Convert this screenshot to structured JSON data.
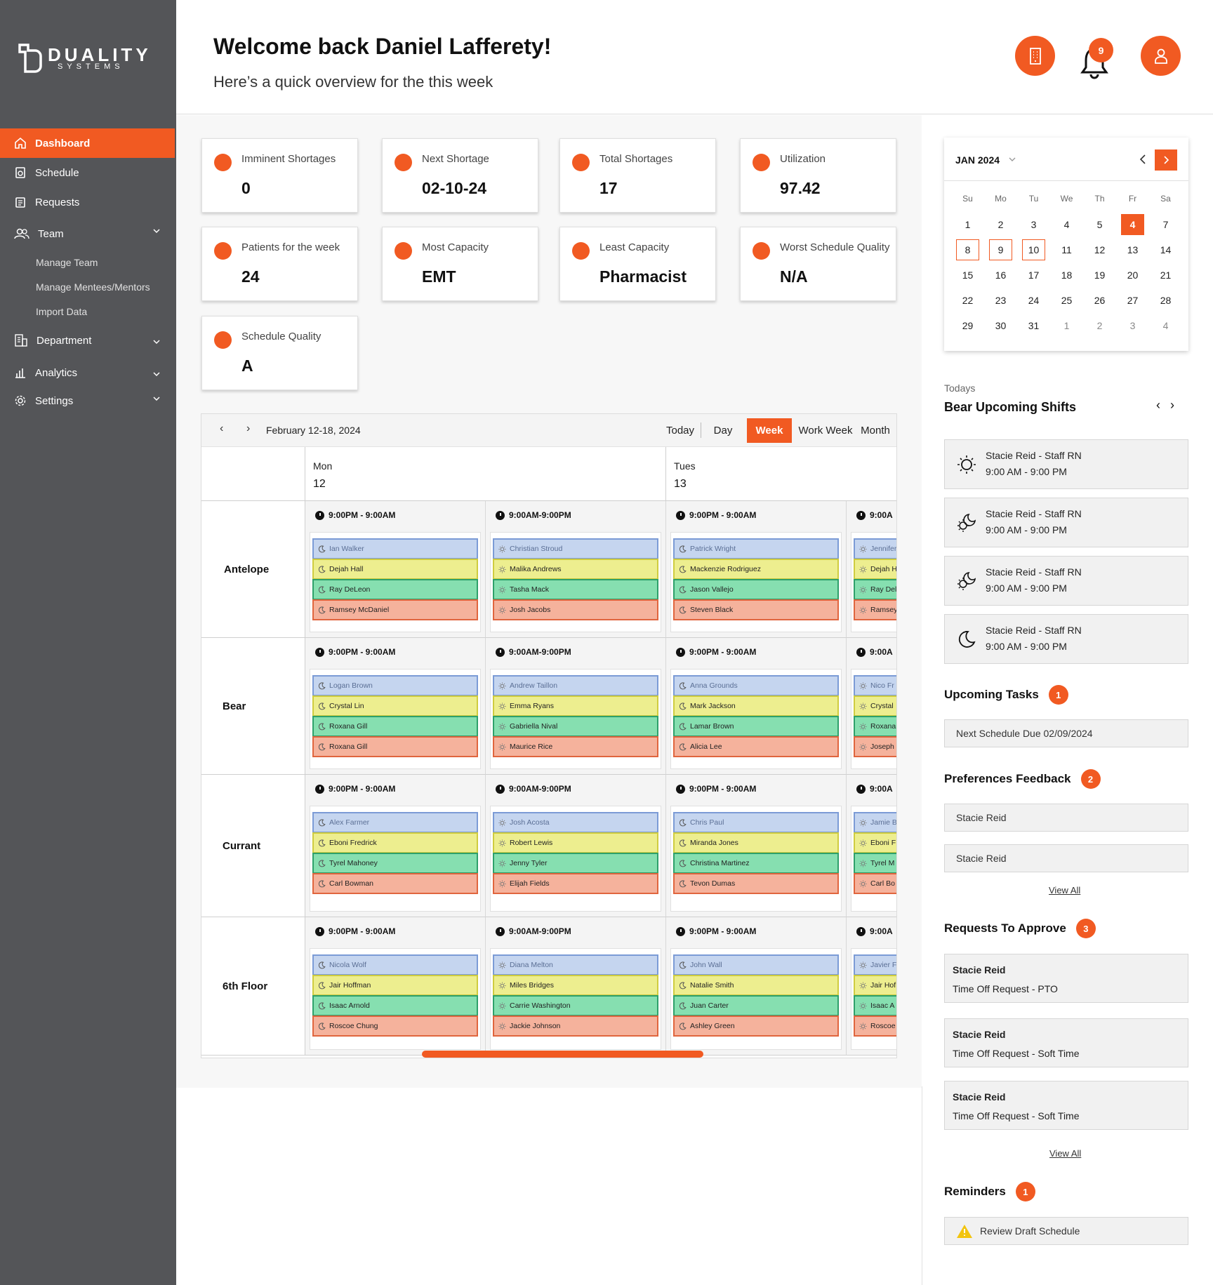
{
  "brand": {
    "name": "DUALITY",
    "sub": "SYSTEMS"
  },
  "sidebar": {
    "items": [
      {
        "label": "Dashboard"
      },
      {
        "label": "Schedule"
      },
      {
        "label": "Requests"
      },
      {
        "label": "Team"
      },
      {
        "label": "Department"
      },
      {
        "label": "Analytics"
      },
      {
        "label": "Settings"
      }
    ],
    "team_sub": [
      "Manage Team",
      "Manage Mentees/Mentors",
      "Import Data"
    ]
  },
  "header": {
    "welcome": "Welcome back Daniel Lafferety!",
    "subtitle": "Here’s a quick overview for the this week",
    "notification_count": "9"
  },
  "stats": [
    {
      "label": "Imminent Shortages",
      "value": "0"
    },
    {
      "label": "Next Shortage",
      "value": "02-10-24"
    },
    {
      "label": "Total Shortages",
      "value": "17"
    },
    {
      "label": "Utilization",
      "value": "97.42"
    },
    {
      "label": "Patients for the week",
      "value": "24"
    },
    {
      "label": "Most Capacity",
      "value": "EMT"
    },
    {
      "label": "Least Capacity",
      "value": "Pharmacist"
    },
    {
      "label": "Worst Schedule Quality",
      "value": "N/A"
    },
    {
      "label": "Schedule Quality",
      "value": "A"
    }
  ],
  "scheduler": {
    "range": "February 12-18, 2024",
    "views": [
      "Today",
      "Day",
      "Week",
      "Work Week",
      "Month"
    ],
    "active_view": "Week",
    "days": [
      {
        "name": "Mon",
        "date": "12"
      },
      {
        "name": "Tues",
        "date": "13"
      }
    ],
    "units": [
      {
        "name": "Antelope",
        "shifts": [
          "9:00PM - 9:00AM",
          "9:00AM-9:00PM",
          "9:00PM - 9:00AM",
          "9:00A"
        ],
        "staff": [
          [
            "Ian Walker",
            "Dejah Hall",
            "Ray DeLeon",
            "Ramsey McDaniel"
          ],
          [
            "Christian Stroud",
            "Malika Andrews",
            "Tasha Mack",
            "Josh Jacobs"
          ],
          [
            "Patrick Wright",
            "Mackenzie Rodriguez",
            "Jason Vallejo",
            "Steven Black"
          ],
          [
            "Jennifer",
            "Dejah H",
            "Ray Del",
            "Ramsey"
          ]
        ]
      },
      {
        "name": "Bear",
        "shifts": [
          "9:00PM - 9:00AM",
          "9:00AM-9:00PM",
          "9:00PM - 9:00AM",
          "9:00A"
        ],
        "staff": [
          [
            "Logan Brown",
            "Crystal Lin",
            "Roxana Gill",
            "Roxana Gill"
          ],
          [
            "Andrew Taillon",
            "Emma Ryans",
            "Gabriella Nival",
            "Maurice Rice"
          ],
          [
            "Anna Grounds",
            "Mark Jackson",
            "Lamar Brown",
            "Alicia Lee"
          ],
          [
            "Nico Fr",
            "Crystal",
            "Roxana",
            "Joseph"
          ]
        ]
      },
      {
        "name": "Currant",
        "shifts": [
          "9:00PM - 9:00AM",
          "9:00AM-9:00PM",
          "9:00PM - 9:00AM",
          "9:00A"
        ],
        "staff": [
          [
            "Alex Farmer",
            "Eboni Fredrick",
            "Tyrel Mahoney",
            "Carl Bowman"
          ],
          [
            "Josh Acosta",
            "Robert Lewis",
            "Jenny Tyler",
            "Elijah Fields"
          ],
          [
            "Chris Paul",
            "Miranda Jones",
            "Christina Martinez",
            "Tevon Dumas"
          ],
          [
            "Jamie B",
            "Eboni F",
            "Tyrel M",
            "Carl Bo"
          ]
        ]
      },
      {
        "name": "6th Floor",
        "shifts": [
          "9:00PM - 9:00AM",
          "9:00AM-9:00PM",
          "9:00PM - 9:00AM",
          "9:00A"
        ],
        "staff": [
          [
            "Nicola Wolf",
            "Jair Hoffman",
            "Isaac Arnold",
            "Roscoe Chung"
          ],
          [
            "Diana Melton",
            "Miles Bridges",
            "Carrie Washington",
            "Jackie Johnson"
          ],
          [
            "John Wall",
            "Natalie Smith",
            "Juan Carter",
            "Ashley Green"
          ],
          [
            "Javier F",
            "Jair Hof",
            "Isaac A",
            "Roscoe"
          ]
        ]
      }
    ]
  },
  "calendar": {
    "month": "JAN 2024",
    "dow": [
      "Su",
      "Mo",
      "Tu",
      "We",
      "Th",
      "Fr",
      "Sa"
    ],
    "weeks": [
      [
        "1",
        "2",
        "3",
        "4",
        "5",
        "4",
        "7"
      ],
      [
        "8",
        "9",
        "10",
        "11",
        "12",
        "13",
        "14"
      ],
      [
        "15",
        "16",
        "17",
        "18",
        "19",
        "20",
        "21"
      ],
      [
        "22",
        "23",
        "24",
        "25",
        "26",
        "27",
        "28"
      ],
      [
        "29",
        "30",
        "31",
        "1",
        "2",
        "3",
        "4"
      ]
    ],
    "selected": "4",
    "outlined": [
      "8",
      "9",
      "10"
    ]
  },
  "upcoming": {
    "caption": "Todays",
    "title": "Bear Upcoming Shifts",
    "shifts": [
      {
        "name": "Stacie Reid - Staff RN",
        "time": "9:00 AM - 9:00 PM",
        "icon": "sun-icon"
      },
      {
        "name": "Stacie Reid - Staff RN",
        "time": "9:00 AM - 9:00 PM",
        "icon": "sun-moon-icon"
      },
      {
        "name": "Stacie Reid - Staff RN",
        "time": "9:00 AM - 9:00 PM",
        "icon": "sun-moon-icon"
      },
      {
        "name": "Stacie Reid - Staff RN",
        "time": "9:00 AM - 9:00 PM",
        "icon": "moon-icon"
      }
    ]
  },
  "tasks": {
    "title": "Upcoming Tasks",
    "count": "1",
    "items": [
      "Next Schedule Due 02/09/2024"
    ]
  },
  "feedback": {
    "title": "Preferences Feedback",
    "count": "2",
    "items": [
      "Stacie Reid",
      "Stacie Reid"
    ],
    "view_all": "View All"
  },
  "requests": {
    "title": "Requests To Approve",
    "count": "3",
    "items": [
      {
        "name": "Stacie Reid",
        "type": "Time Off Request - PTO"
      },
      {
        "name": "Stacie Reid",
        "type": "Time Off Request - Soft Time"
      },
      {
        "name": "Stacie Reid",
        "type": "Time Off Request - Soft Time"
      }
    ],
    "view_all": "View All"
  },
  "reminders": {
    "title": "Reminders",
    "count": "1",
    "items": [
      "Review Draft Schedule"
    ]
  },
  "colors": {
    "accent": "#f15a22",
    "sidebar": "#545558"
  }
}
